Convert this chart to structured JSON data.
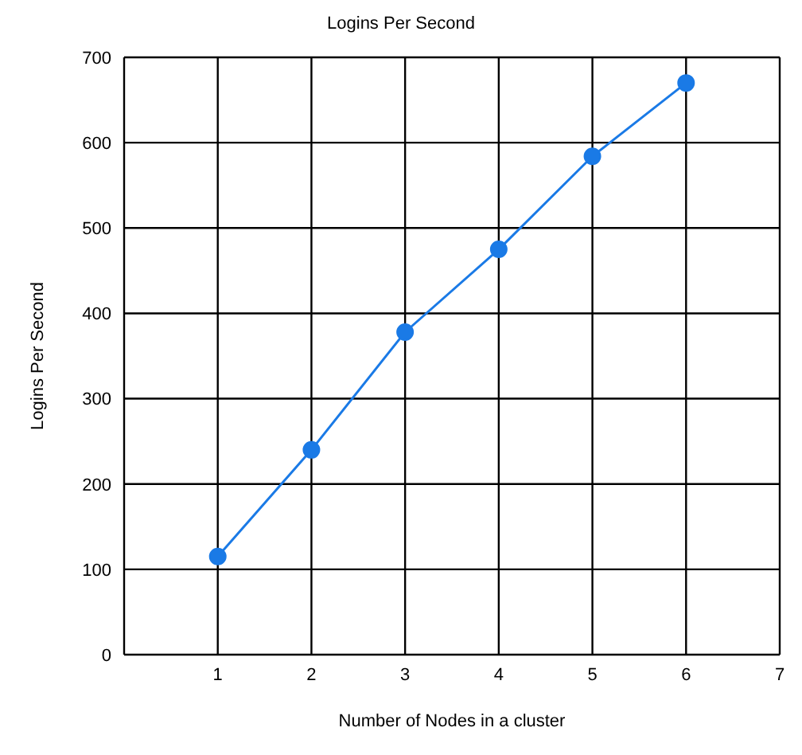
{
  "chart_data": {
    "type": "line",
    "title": "Logins Per Second",
    "xlabel": "Number of Nodes in a cluster",
    "ylabel": "Logins Per Second",
    "x": [
      1,
      2,
      3,
      4,
      5,
      6
    ],
    "series": [
      {
        "color": "#1a7ae6",
        "values": [
          115,
          240,
          378,
          475,
          584,
          670
        ]
      }
    ],
    "xlim": [
      0,
      7
    ],
    "xticks": [
      {
        "value": 0,
        "label": null
      },
      1,
      2,
      3,
      4,
      5,
      6,
      7
    ],
    "ylim": [
      0,
      700
    ],
    "yticks": [
      0,
      100,
      200,
      300,
      400,
      500,
      600,
      700
    ],
    "grid": true,
    "legend": false,
    "marker": "circle",
    "line_style": "solid"
  }
}
